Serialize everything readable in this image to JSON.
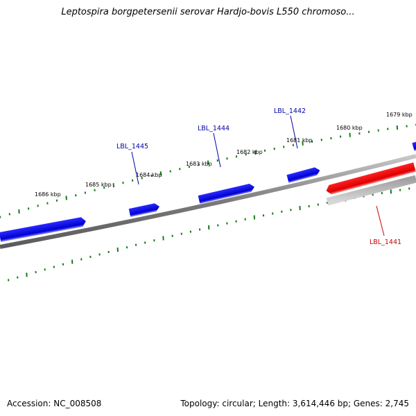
{
  "title": "Leptospira borgpetersenii serovar Hardjo-bovis L550 chromoso...",
  "footer": {
    "accession": "Accession: NC_008508",
    "summary": "Topology: circular; Length: 3,614,446 bp; Genes: 2,745"
  },
  "colors": {
    "forward_gene": "#1010e0",
    "reverse_gene": "#ee0000",
    "backbone": "#808080",
    "ticks": "#1a7a1a",
    "forward_label": "#0000aa",
    "reverse_label": "#cc0000"
  },
  "ruler": {
    "unit": "kbp",
    "labels": [
      "1686 kbp",
      "1685 kbp",
      "1684 kbp",
      "1683 kbp",
      "1682 kbp",
      "1681 kbp",
      "1680 kbp",
      "1679 kbp"
    ]
  },
  "genes": [
    {
      "name": "",
      "strand": "+"
    },
    {
      "name": "LBL_1445",
      "strand": "+"
    },
    {
      "name": "LBL_1444",
      "strand": "+"
    },
    {
      "name": "LBL_1442",
      "strand": "+"
    },
    {
      "name": "",
      "strand": "+"
    },
    {
      "name": "LBL_1441",
      "strand": "-"
    }
  ]
}
